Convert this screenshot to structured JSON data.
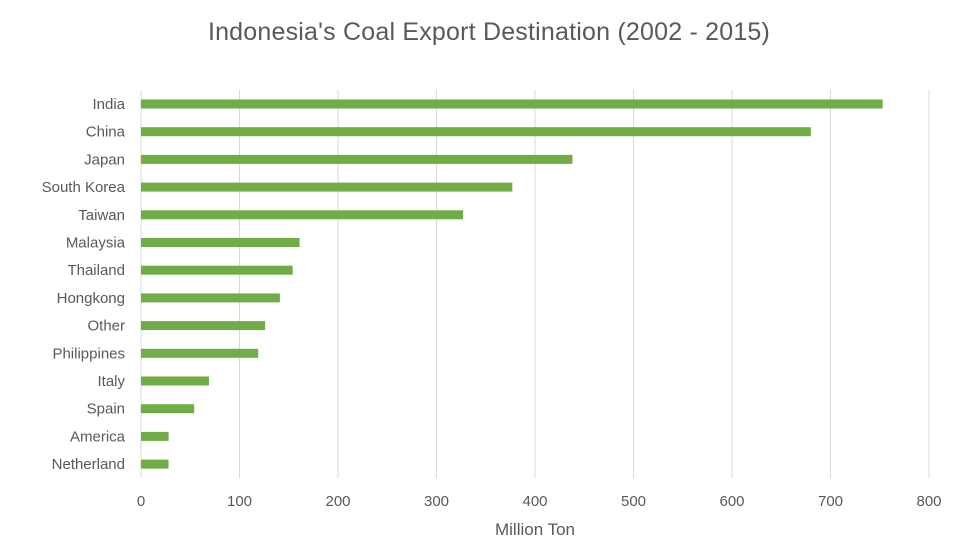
{
  "chart_data": {
    "type": "bar",
    "orientation": "horizontal",
    "title": "Indonesia's Coal Export Destination (2002 - 2015)",
    "xlabel": "Million Ton",
    "ylabel": "",
    "xlim": [
      0,
      800
    ],
    "x_ticks": [
      0,
      100,
      200,
      300,
      400,
      500,
      600,
      700,
      800
    ],
    "grid": true,
    "legend": "none",
    "bar_color": "#70ad47",
    "categories": [
      "India",
      "China",
      "Japan",
      "South Korea",
      "Taiwan",
      "Malaysia",
      "Thailand",
      "Hongkong",
      "Other",
      "Philippines",
      "Italy",
      "Spain",
      "America",
      "Netherland"
    ],
    "values": [
      753,
      680,
      438,
      377,
      327,
      161,
      154,
      141,
      126,
      119,
      69,
      54,
      28,
      28
    ]
  }
}
